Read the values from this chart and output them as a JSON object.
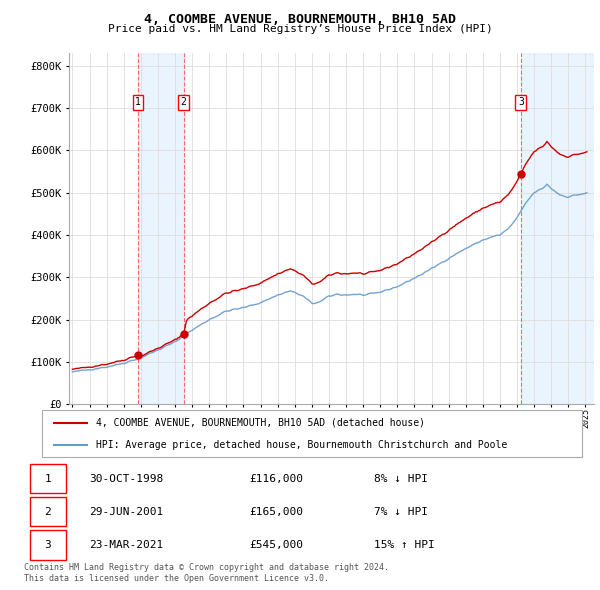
{
  "title": "4, COOMBE AVENUE, BOURNEMOUTH, BH10 5AD",
  "subtitle": "Price paid vs. HM Land Registry’s House Price Index (HPI)",
  "legend_house": "4, COOMBE AVENUE, BOURNEMOUTH, BH10 5AD (detached house)",
  "legend_hpi": "HPI: Average price, detached house, Bournemouth Christchurch and Poole",
  "footer1": "Contains HM Land Registry data © Crown copyright and database right 2024.",
  "footer2": "This data is licensed under the Open Government Licence v3.0.",
  "transactions": [
    {
      "label": "1",
      "date": "30-OCT-1998",
      "price": "£116,000",
      "hpi_txt": "8% ↓ HPI",
      "year": 1998.83,
      "value": 116000
    },
    {
      "label": "2",
      "date": "29-JUN-2001",
      "price": "£165,000",
      "hpi_txt": "7% ↓ HPI",
      "year": 2001.5,
      "value": 165000
    },
    {
      "label": "3",
      "date": "23-MAR-2021",
      "price": "£545,000",
      "hpi_txt": "15% ↑ HPI",
      "year": 2021.22,
      "value": 545000
    }
  ],
  "ylim": [
    0,
    830000
  ],
  "xlim_start": 1994.8,
  "xlim_end": 2025.5,
  "house_color": "#cc0000",
  "hpi_color": "#6699cc",
  "hpi_fill_color": "#ddeeff",
  "vline_color": "#ff6666",
  "shade_color": "#ddeeff",
  "background_color": "#ffffff",
  "grid_color": "#dddddd",
  "title_fontsize": 9.5,
  "subtitle_fontsize": 8
}
